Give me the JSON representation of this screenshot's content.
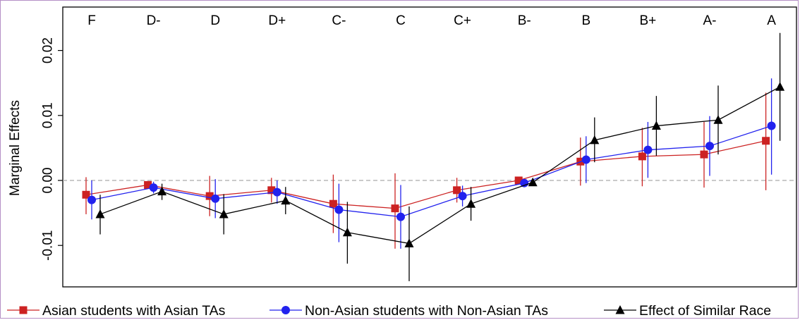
{
  "chart_data": {
    "type": "line",
    "categories": [
      "F",
      "D-",
      "D",
      "D+",
      "C-",
      "C",
      "C+",
      "B-",
      "B",
      "B+",
      "A-",
      "A"
    ],
    "ylabel": "Marginal Effects",
    "xlabel": "",
    "title": "",
    "ylim": [
      -0.016,
      0.026
    ],
    "yticks": [
      -0.01,
      0.0,
      0.01,
      0.02
    ],
    "ytick_labels": [
      "-0.01",
      "0.00",
      "0.01",
      "0.02"
    ],
    "reference_line": 0,
    "legend_position": "bottom",
    "series": [
      {
        "name": "Asian students with Asian TAs",
        "color": "#cc2222",
        "marker": "square",
        "values": [
          -0.0022,
          -0.0007,
          -0.0024,
          -0.0015,
          -0.0036,
          -0.0043,
          -0.0015,
          0.0,
          0.0029,
          0.0037,
          0.004,
          0.0061
        ],
        "ci_low": [
          -0.0052,
          -0.0012,
          -0.0055,
          -0.0034,
          -0.0081,
          -0.0105,
          -0.0034,
          -0.0002,
          -0.0008,
          -0.0009,
          -0.0011,
          -0.0015
        ],
        "ci_high": [
          0.0005,
          -0.0001,
          0.0007,
          0.0004,
          0.0009,
          0.0011,
          0.0004,
          0.0002,
          0.0066,
          0.0081,
          0.009,
          0.0135
        ]
      },
      {
        "name": "Non-Asian students with Non-Asian TAs",
        "color": "#2222ee",
        "marker": "circle",
        "values": [
          -0.003,
          -0.0011,
          -0.0028,
          -0.0018,
          -0.0045,
          -0.0056,
          -0.0024,
          -0.0004,
          0.0032,
          0.0047,
          0.0053,
          0.0084
        ],
        "ci_low": [
          -0.006,
          -0.002,
          -0.0058,
          -0.0036,
          -0.0095,
          -0.0105,
          -0.004,
          -0.0007,
          -0.0004,
          0.0004,
          0.0007,
          0.0009
        ],
        "ci_high": [
          0.0,
          -0.0002,
          0.0002,
          0.0,
          -0.0005,
          -0.0007,
          -0.0008,
          -0.0001,
          0.0068,
          0.009,
          0.0099,
          0.0157
        ]
      },
      {
        "name": "Effect of Similar Race",
        "color": "#000000",
        "marker": "triangle",
        "values": [
          -0.0052,
          -0.0017,
          -0.0052,
          -0.0031,
          -0.008,
          -0.0097,
          -0.0036,
          -0.0003,
          0.0062,
          0.0084,
          0.0093,
          0.0144
        ],
        "ci_low": [
          -0.0083,
          -0.003,
          -0.0083,
          -0.0052,
          -0.0128,
          -0.0155,
          -0.0062,
          -0.0006,
          0.0028,
          0.0038,
          0.004,
          0.0061
        ],
        "ci_high": [
          -0.0022,
          -0.0005,
          -0.0021,
          -0.001,
          -0.0033,
          -0.004,
          -0.001,
          0.0,
          0.0097,
          0.013,
          0.0146,
          0.0227
        ]
      }
    ]
  }
}
